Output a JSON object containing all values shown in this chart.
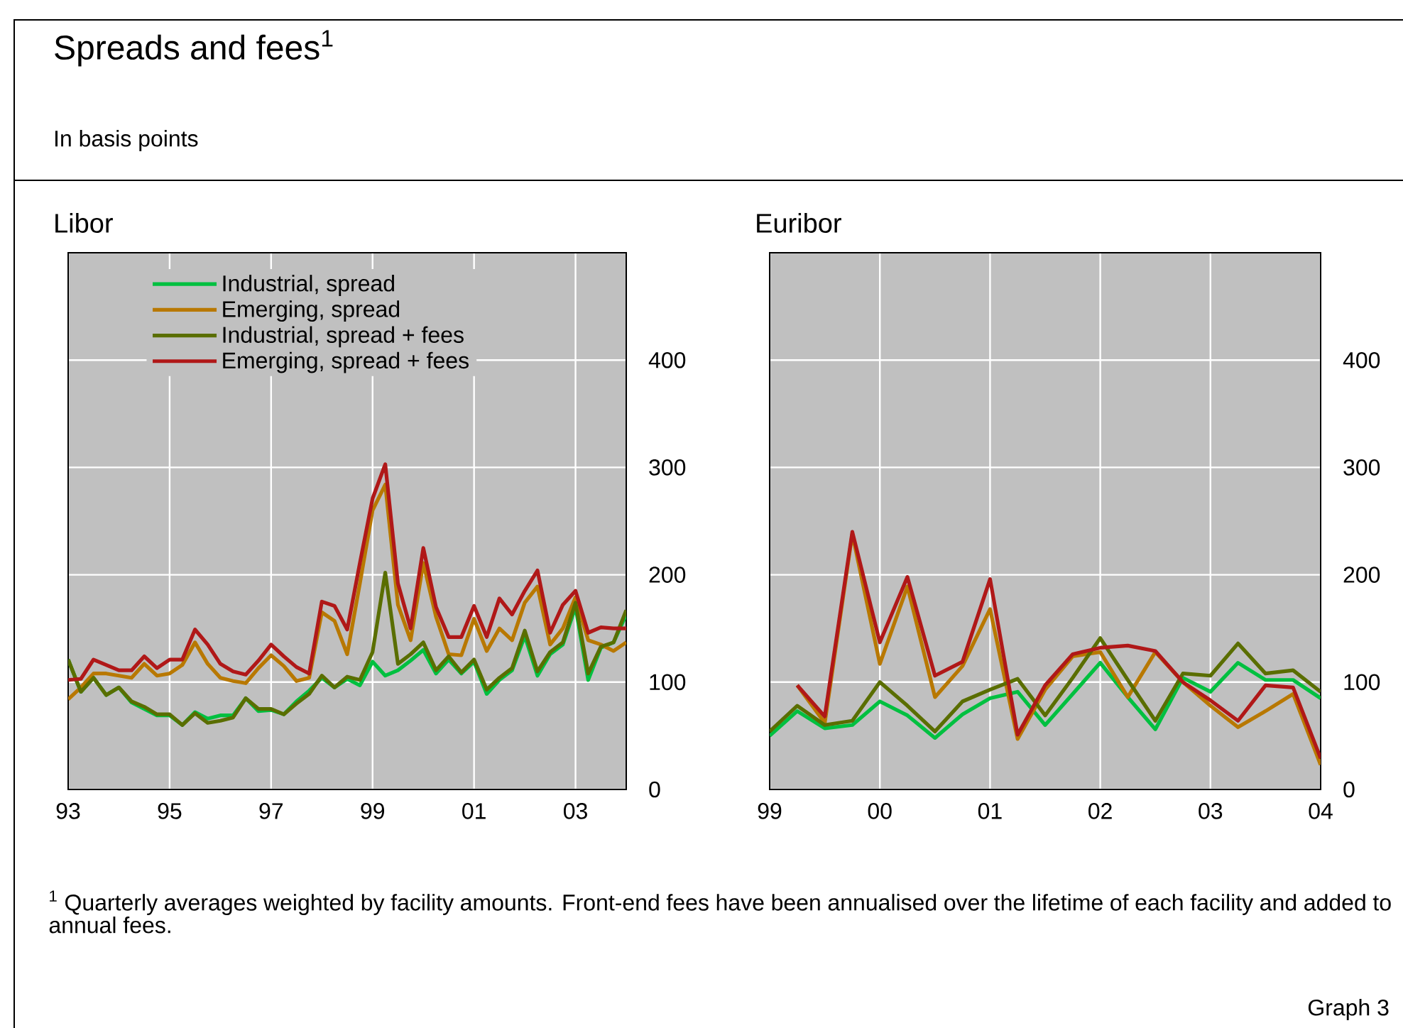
{
  "chart_data": [
    {
      "type": "line",
      "title": "Libor",
      "annotations": [
        "Spreads and fees$^{1}$",
        "In basis points",
        "$^{1}$  Quarterly averages weighted by facility amounts. Front-end fees have been annualised over the lifetime of each facility and added to annual fees.",
        "Graph 3"
      ],
      "x": [
        1993,
        1993.25,
        1993.5,
        1993.75,
        1994,
        1994.25,
        1994.5,
        1994.75,
        1995,
        1995.25,
        1995.5,
        1995.75,
        1996,
        1996.25,
        1996.5,
        1996.75,
        1997,
        1997.25,
        1997.5,
        1997.75,
        1998,
        1998.25,
        1998.5,
        1998.75,
        1999,
        1999.25,
        1999.5,
        1999.75,
        2000,
        2000.25,
        2000.5,
        2000.75,
        2001,
        2001.25,
        2001.5,
        2001.75,
        2002,
        2002.25,
        2002.5,
        2002.75,
        2003,
        2003.25,
        2003.5,
        2003.75,
        2004
      ],
      "series": [
        {
          "name": "Industrial, spread",
          "color": "#00c040",
          "values": [
            121,
            91,
            104,
            88,
            95,
            81,
            75,
            69,
            69,
            60,
            72,
            66,
            69,
            69,
            85,
            73,
            74,
            70,
            82,
            92,
            104,
            95,
            103,
            97,
            119,
            106,
            111,
            120,
            130,
            108,
            121,
            108,
            119,
            89,
            102,
            111,
            143,
            106,
            126,
            135,
            170,
            102,
            132,
            137,
            163
          ]
        },
        {
          "name": "Emerging, spread",
          "color": "#b87800",
          "values": [
            84,
            95,
            108,
            108,
            106,
            104,
            117,
            106,
            108,
            116,
            137,
            117,
            104,
            101,
            99,
            113,
            125,
            115,
            101,
            104,
            165,
            157,
            126,
            192,
            260,
            284,
            172,
            139,
            211,
            161,
            126,
            125,
            159,
            129,
            150,
            139,
            174,
            189,
            135,
            150,
            179,
            139,
            135,
            129,
            137
          ]
        },
        {
          "name": "Industrial, spread + fees",
          "color": "#5a6e00",
          "values": [
            121,
            91,
            104,
            88,
            95,
            82,
            77,
            70,
            70,
            60,
            71,
            62,
            64,
            67,
            85,
            75,
            75,
            70,
            80,
            89,
            106,
            95,
            105,
            102,
            128,
            202,
            117,
            126,
            137,
            111,
            124,
            109,
            121,
            93,
            104,
            113,
            148,
            110,
            128,
            137,
            174,
            108,
            133,
            137,
            167
          ]
        },
        {
          "name": "Emerging, spread + fees",
          "color": "#b01818",
          "values": [
            102,
            103,
            121,
            116,
            111,
            111,
            124,
            113,
            121,
            121,
            149,
            135,
            117,
            110,
            107,
            120,
            135,
            124,
            114,
            108,
            175,
            171,
            149,
            211,
            271,
            303,
            192,
            150,
            225,
            170,
            142,
            142,
            171,
            142,
            178,
            163,
            185,
            204,
            146,
            172,
            185,
            146,
            151,
            150,
            150
          ]
        }
      ],
      "xlim": [
        1993,
        2004
      ],
      "xticks": [
        {
          "value": 1993,
          "label": "93"
        },
        {
          "value": 1995,
          "label": "95"
        },
        {
          "value": 1997,
          "label": "97"
        },
        {
          "value": 1999,
          "label": "99"
        },
        {
          "value": 2001,
          "label": "01"
        },
        {
          "value": 2003,
          "label": "03"
        }
      ],
      "ylim": [
        0,
        500
      ],
      "yticks": [
        0,
        100,
        200,
        300,
        400
      ],
      "grid": true,
      "legend": "top left"
    },
    {
      "type": "line",
      "title": "Euribor",
      "x": [
        1999,
        1999.25,
        1999.5,
        1999.75,
        2000,
        2000.25,
        2000.5,
        2000.75,
        2001,
        2001.25,
        2001.5,
        2001.75,
        2002,
        2002.25,
        2002.5,
        2002.75,
        2003,
        2003.25,
        2003.5,
        2003.75,
        2004
      ],
      "series": [
        {
          "color": "#00c040",
          "values": [
            50,
            73,
            57,
            60,
            82,
            69,
            48,
            70,
            85,
            91,
            60,
            89,
            118,
            86,
            56,
            104,
            91,
            118,
            102,
            102,
            85
          ]
        },
        {
          "color": "#b87800",
          "values": [
            null,
            97,
            62,
            238,
            117,
            189,
            86,
            115,
            168,
            47,
            93,
            124,
            128,
            86,
            128,
            100,
            78,
            58,
            73,
            89,
            23
          ]
        },
        {
          "color": "#5a6e00",
          "values": [
            54,
            78,
            60,
            64,
            100,
            78,
            54,
            82,
            93,
            103,
            69,
            104,
            141,
            102,
            64,
            108,
            106,
            136,
            108,
            111,
            91
          ]
        },
        {
          "color": "#b01818",
          "values": [
            null,
            97,
            68,
            240,
            137,
            198,
            106,
            119,
            196,
            51,
            97,
            126,
            132,
            134,
            129,
            100,
            83,
            64,
            97,
            95,
            29
          ]
        }
      ],
      "xlim": [
        1999,
        2004
      ],
      "xticks": [
        {
          "value": 1999,
          "label": "99"
        },
        {
          "value": 2000,
          "label": "00"
        },
        {
          "value": 2001,
          "label": "01"
        },
        {
          "value": 2002,
          "label": "02"
        },
        {
          "value": 2003,
          "label": "03"
        },
        {
          "value": 2004,
          "label": "04"
        }
      ],
      "ylim": [
        0,
        500
      ],
      "yticks": [
        0,
        100,
        200,
        300,
        400
      ],
      "grid": true
    }
  ]
}
